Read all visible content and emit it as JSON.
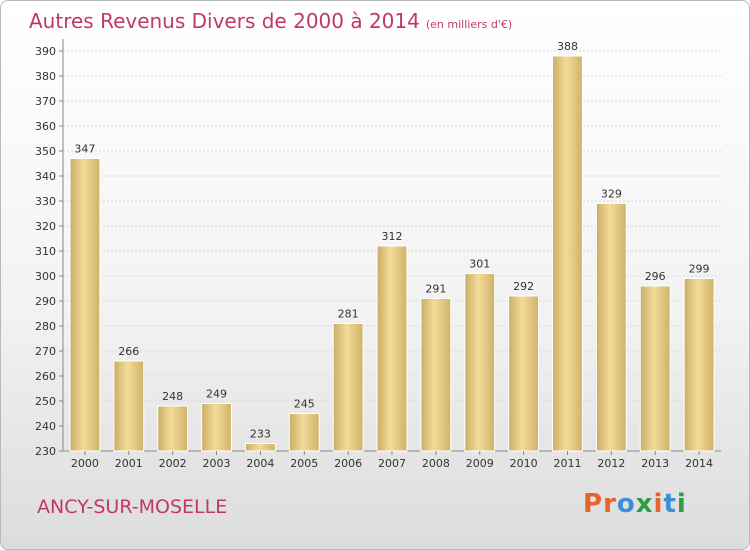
{
  "header": {
    "title": "Autres Revenus Divers de 2000 à 2014",
    "unit": "(en milliers d'€)"
  },
  "footer": {
    "city": "ANCY-SUR-MOSELLE",
    "logo": "Proxiti",
    "logo_colors": [
      "#e8632b",
      "#e8632b",
      "#3a8fd6",
      "#2e9d45",
      "#e8632b",
      "#3a8fd6",
      "#2e9d45"
    ]
  },
  "chart_data": {
    "type": "bar",
    "title": "Autres Revenus Divers de 2000 à 2014",
    "xlabel": "",
    "ylabel": "",
    "categories": [
      "2000",
      "2001",
      "2002",
      "2003",
      "2004",
      "2005",
      "2006",
      "2007",
      "2008",
      "2009",
      "2010",
      "2011",
      "2012",
      "2013",
      "2014"
    ],
    "values": [
      347,
      266,
      248,
      249,
      233,
      245,
      281,
      312,
      291,
      301,
      292,
      388,
      329,
      296,
      299
    ],
    "ylim": [
      230,
      390
    ],
    "ytick_step": 10,
    "grid": true,
    "bar_color": "#e0c57e"
  }
}
